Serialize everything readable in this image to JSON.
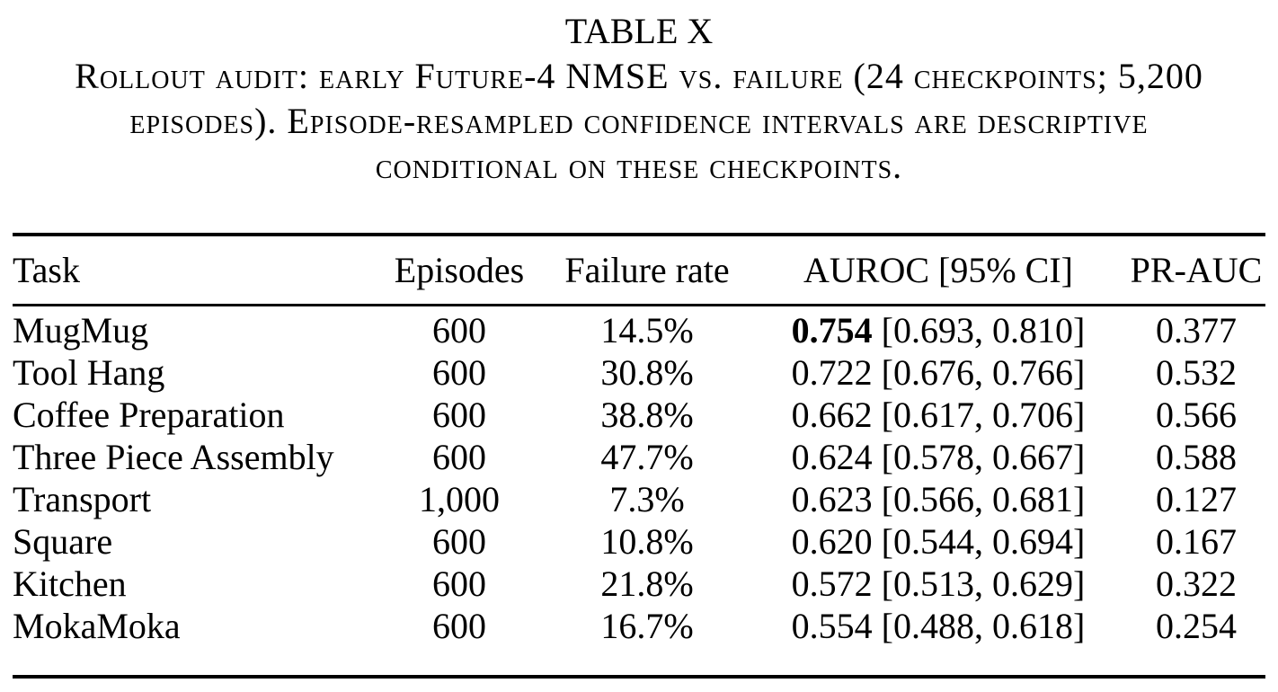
{
  "caption": {
    "label": "TABLE X",
    "text": "Rollout audit: early Future-4 NMSE vs. failure (24 checkpoints; 5,200 episodes). Episode-resampled confidence intervals are descriptive conditional on these checkpoints."
  },
  "table": {
    "headers": {
      "task": "Task",
      "episodes": "Episodes",
      "failure_rate": "Failure rate",
      "auroc": "AUROC [95% CI]",
      "pr_auc": "PR-AUC"
    },
    "rows": [
      {
        "task": "MugMug",
        "episodes": "600",
        "failure_rate": "14.5%",
        "auroc": "0.754",
        "auroc_ci": "[0.693, 0.810]",
        "pr_auc": "0.377",
        "auroc_bold": true
      },
      {
        "task": "Tool Hang",
        "episodes": "600",
        "failure_rate": "30.8%",
        "auroc": "0.722",
        "auroc_ci": "[0.676, 0.766]",
        "pr_auc": "0.532"
      },
      {
        "task": "Coffee Preparation",
        "episodes": "600",
        "failure_rate": "38.8%",
        "auroc": "0.662",
        "auroc_ci": "[0.617, 0.706]",
        "pr_auc": "0.566"
      },
      {
        "task": "Three Piece Assembly",
        "episodes": "600",
        "failure_rate": "47.7%",
        "auroc": "0.624",
        "auroc_ci": "[0.578, 0.667]",
        "pr_auc": "0.588"
      },
      {
        "task": "Transport",
        "episodes": "1,000",
        "failure_rate": "7.3%",
        "auroc": "0.623",
        "auroc_ci": "[0.566, 0.681]",
        "pr_auc": "0.127"
      },
      {
        "task": "Square",
        "episodes": "600",
        "failure_rate": "10.8%",
        "auroc": "0.620",
        "auroc_ci": "[0.544, 0.694]",
        "pr_auc": "0.167"
      },
      {
        "task": "Kitchen",
        "episodes": "600",
        "failure_rate": "21.8%",
        "auroc": "0.572",
        "auroc_ci": "[0.513, 0.629]",
        "pr_auc": "0.322"
      },
      {
        "task": "MokaMoka",
        "episodes": "600",
        "failure_rate": "16.7%",
        "auroc": "0.554",
        "auroc_ci": "[0.488, 0.618]",
        "pr_auc": "0.254"
      }
    ]
  }
}
